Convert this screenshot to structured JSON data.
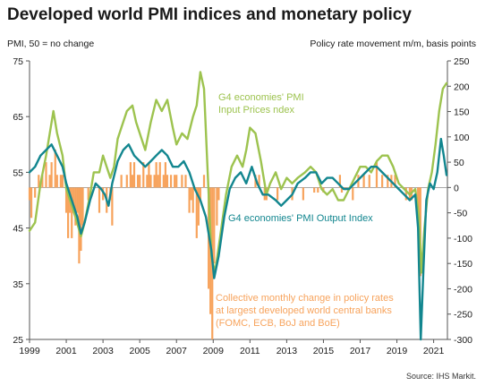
{
  "chart_data": {
    "type": "line",
    "title": "Developed world PMI indices and monetary policy",
    "left_axis_label": "PMI, 50 = no change",
    "right_axis_label": "Policy rate movement m/m, basis points",
    "source": "Source: IHS Markit.",
    "x_ticks": [
      "1999",
      "2001",
      "2003",
      "2005",
      "2007",
      "2009",
      "2011",
      "2013",
      "2015",
      "2017",
      "2019",
      "2021"
    ],
    "x_range": [
      1999.0,
      2021.75
    ],
    "y_left_ticks": [
      25,
      35,
      45,
      55,
      65,
      75
    ],
    "y_left_range": [
      25,
      75
    ],
    "y_right_ticks": [
      -300,
      -250,
      -200,
      -150,
      -100,
      -50,
      0,
      50,
      100,
      150,
      200,
      250
    ],
    "y_right_range": [
      -300,
      250
    ],
    "grid": false,
    "colors": {
      "input_prices": "#9dc34f",
      "output": "#12868f",
      "policy": "#f7a35c"
    },
    "annotations": {
      "input_prices_label": [
        "G4 economies' PMI",
        "Input  Prices ndex"
      ],
      "output_label": [
        "G4 economies' PMI Output  Index"
      ],
      "policy_label": [
        "Collective monthly change in policy rates",
        "at largest developed world central banks",
        "(FOMC, ECB, BoJ and BoE)"
      ]
    },
    "series": [
      {
        "name": "G4 economies' PMI Input  Prices ndex",
        "axis": "left",
        "points": [
          [
            1999.0,
            44.5
          ],
          [
            1999.3,
            46
          ],
          [
            1999.6,
            53
          ],
          [
            1999.9,
            58
          ],
          [
            2000.1,
            62
          ],
          [
            2000.3,
            66
          ],
          [
            2000.5,
            62
          ],
          [
            2000.8,
            58
          ],
          [
            2001.0,
            52
          ],
          [
            2001.2,
            50
          ],
          [
            2001.5,
            47
          ],
          [
            2001.8,
            43.5
          ],
          [
            2002.0,
            46
          ],
          [
            2002.3,
            51
          ],
          [
            2002.5,
            55
          ],
          [
            2002.8,
            55
          ],
          [
            2003.0,
            58
          ],
          [
            2003.2,
            56
          ],
          [
            2003.4,
            54
          ],
          [
            2003.6,
            56
          ],
          [
            2003.8,
            61
          ],
          [
            2004.0,
            63
          ],
          [
            2004.3,
            66
          ],
          [
            2004.6,
            67
          ],
          [
            2004.8,
            64
          ],
          [
            2005.0,
            62
          ],
          [
            2005.3,
            59
          ],
          [
            2005.6,
            64
          ],
          [
            2005.9,
            68
          ],
          [
            2006.2,
            66
          ],
          [
            2006.5,
            68
          ],
          [
            2006.8,
            63
          ],
          [
            2007.0,
            60
          ],
          [
            2007.3,
            62
          ],
          [
            2007.6,
            61
          ],
          [
            2007.9,
            65
          ],
          [
            2008.1,
            67
          ],
          [
            2008.3,
            73
          ],
          [
            2008.5,
            70
          ],
          [
            2008.7,
            55
          ],
          [
            2008.9,
            40
          ],
          [
            2009.1,
            37
          ],
          [
            2009.4,
            44
          ],
          [
            2009.7,
            51
          ],
          [
            2010.0,
            56
          ],
          [
            2010.3,
            58
          ],
          [
            2010.6,
            56
          ],
          [
            2010.8,
            59
          ],
          [
            2011.0,
            63
          ],
          [
            2011.3,
            62
          ],
          [
            2011.6,
            57
          ],
          [
            2011.9,
            51
          ],
          [
            2012.1,
            53
          ],
          [
            2012.4,
            55
          ],
          [
            2012.7,
            52
          ],
          [
            2013.0,
            54
          ],
          [
            2013.3,
            53
          ],
          [
            2013.6,
            54
          ],
          [
            2014.0,
            55
          ],
          [
            2014.3,
            56
          ],
          [
            2014.6,
            55
          ],
          [
            2014.9,
            52
          ],
          [
            2015.2,
            51
          ],
          [
            2015.5,
            52
          ],
          [
            2015.8,
            50
          ],
          [
            2016.1,
            50
          ],
          [
            2016.4,
            52
          ],
          [
            2016.7,
            54
          ],
          [
            2017.0,
            56
          ],
          [
            2017.3,
            56
          ],
          [
            2017.6,
            55
          ],
          [
            2017.9,
            57
          ],
          [
            2018.2,
            58
          ],
          [
            2018.5,
            58
          ],
          [
            2018.8,
            56
          ],
          [
            2019.1,
            53
          ],
          [
            2019.4,
            52
          ],
          [
            2019.7,
            51
          ],
          [
            2020.0,
            52
          ],
          [
            2020.2,
            47
          ],
          [
            2020.33,
            37
          ],
          [
            2020.5,
            45
          ],
          [
            2020.7,
            52
          ],
          [
            2020.9,
            55
          ],
          [
            2021.1,
            60
          ],
          [
            2021.3,
            66
          ],
          [
            2021.5,
            70
          ],
          [
            2021.7,
            71
          ]
        ]
      },
      {
        "name": "G4 economies' PMI Output  Index",
        "axis": "left",
        "points": [
          [
            1999.0,
            55
          ],
          [
            1999.3,
            56
          ],
          [
            1999.6,
            58
          ],
          [
            1999.9,
            59
          ],
          [
            2000.2,
            60
          ],
          [
            2000.5,
            58
          ],
          [
            2000.8,
            56
          ],
          [
            2001.0,
            53
          ],
          [
            2001.3,
            50
          ],
          [
            2001.6,
            47
          ],
          [
            2001.8,
            44
          ],
          [
            2002.0,
            46
          ],
          [
            2002.3,
            50
          ],
          [
            2002.6,
            53
          ],
          [
            2002.9,
            52
          ],
          [
            2003.1,
            51
          ],
          [
            2003.3,
            49
          ],
          [
            2003.5,
            53
          ],
          [
            2003.8,
            57
          ],
          [
            2004.1,
            59
          ],
          [
            2004.4,
            60
          ],
          [
            2004.7,
            58
          ],
          [
            2005.0,
            57
          ],
          [
            2005.3,
            56
          ],
          [
            2005.6,
            57
          ],
          [
            2005.9,
            58
          ],
          [
            2006.2,
            59
          ],
          [
            2006.5,
            58
          ],
          [
            2006.8,
            56
          ],
          [
            2007.1,
            56
          ],
          [
            2007.4,
            57
          ],
          [
            2007.7,
            55
          ],
          [
            2008.0,
            52
          ],
          [
            2008.3,
            50
          ],
          [
            2008.6,
            47
          ],
          [
            2008.9,
            41
          ],
          [
            2009.05,
            36
          ],
          [
            2009.3,
            40
          ],
          [
            2009.6,
            47
          ],
          [
            2009.9,
            52
          ],
          [
            2010.2,
            54
          ],
          [
            2010.5,
            55
          ],
          [
            2010.8,
            53
          ],
          [
            2011.1,
            56
          ],
          [
            2011.4,
            53
          ],
          [
            2011.7,
            51
          ],
          [
            2012.0,
            51
          ],
          [
            2012.4,
            50
          ],
          [
            2012.7,
            49
          ],
          [
            2013.0,
            50
          ],
          [
            2013.3,
            51
          ],
          [
            2013.6,
            53
          ],
          [
            2014.0,
            54
          ],
          [
            2014.3,
            55
          ],
          [
            2014.6,
            55
          ],
          [
            2014.9,
            53
          ],
          [
            2015.2,
            54
          ],
          [
            2015.5,
            54
          ],
          [
            2015.8,
            53
          ],
          [
            2016.1,
            52
          ],
          [
            2016.4,
            52
          ],
          [
            2016.7,
            53
          ],
          [
            2017.0,
            54
          ],
          [
            2017.3,
            55
          ],
          [
            2017.6,
            56
          ],
          [
            2017.9,
            56
          ],
          [
            2018.2,
            55
          ],
          [
            2018.5,
            54
          ],
          [
            2018.8,
            53
          ],
          [
            2019.1,
            52
          ],
          [
            2019.4,
            51
          ],
          [
            2019.7,
            50
          ],
          [
            2020.0,
            51
          ],
          [
            2020.15,
            45
          ],
          [
            2020.3,
            25
          ],
          [
            2020.45,
            38
          ],
          [
            2020.6,
            50
          ],
          [
            2020.8,
            53
          ],
          [
            2021.0,
            52
          ],
          [
            2021.2,
            55
          ],
          [
            2021.4,
            61
          ],
          [
            2021.55,
            58
          ],
          [
            2021.7,
            54.5
          ]
        ]
      },
      {
        "name": "Collective monthly change in policy rates at largest developed world central banks (FOMC, ECB, BoJ and BoE)",
        "axis": "right",
        "type": "bar",
        "points": [
          [
            1999.0,
            -25
          ],
          [
            1999.1,
            -60
          ],
          [
            1999.3,
            -20
          ],
          [
            1999.5,
            25
          ],
          [
            1999.7,
            25
          ],
          [
            1999.9,
            50
          ],
          [
            2000.1,
            25
          ],
          [
            2000.2,
            50
          ],
          [
            2000.4,
            75
          ],
          [
            2000.5,
            25
          ],
          [
            2000.7,
            25
          ],
          [
            2000.8,
            25
          ],
          [
            2001.0,
            -50
          ],
          [
            2001.1,
            -100
          ],
          [
            2001.2,
            -50
          ],
          [
            2001.3,
            -100
          ],
          [
            2001.4,
            -50
          ],
          [
            2001.5,
            -75
          ],
          [
            2001.6,
            -50
          ],
          [
            2001.7,
            -150
          ],
          [
            2001.8,
            -125
          ],
          [
            2001.9,
            -75
          ],
          [
            2002.2,
            -25
          ],
          [
            2002.8,
            -50
          ],
          [
            2003.0,
            -25
          ],
          [
            2003.2,
            -50
          ],
          [
            2003.4,
            -25
          ],
          [
            2003.5,
            -75
          ],
          [
            2004.0,
            25
          ],
          [
            2004.3,
            25
          ],
          [
            2004.5,
            50
          ],
          [
            2004.6,
            25
          ],
          [
            2004.7,
            50
          ],
          [
            2004.9,
            25
          ],
          [
            2005.0,
            25
          ],
          [
            2005.2,
            50
          ],
          [
            2005.4,
            25
          ],
          [
            2005.5,
            50
          ],
          [
            2005.6,
            25
          ],
          [
            2005.8,
            25
          ],
          [
            2005.9,
            50
          ],
          [
            2006.0,
            25
          ],
          [
            2006.1,
            50
          ],
          [
            2006.3,
            25
          ],
          [
            2006.4,
            50
          ],
          [
            2006.5,
            25
          ],
          [
            2006.7,
            25
          ],
          [
            2006.9,
            25
          ],
          [
            2007.0,
            25
          ],
          [
            2007.3,
            25
          ],
          [
            2007.5,
            25
          ],
          [
            2007.7,
            -50
          ],
          [
            2007.8,
            -25
          ],
          [
            2007.9,
            -50
          ],
          [
            2008.1,
            -100
          ],
          [
            2008.2,
            -75
          ],
          [
            2008.3,
            -25
          ],
          [
            2008.5,
            25
          ],
          [
            2008.75,
            -200
          ],
          [
            2008.85,
            -250
          ],
          [
            2008.95,
            -300
          ],
          [
            2009.05,
            -150
          ],
          [
            2009.2,
            -75
          ],
          [
            2009.3,
            -25
          ],
          [
            2011.3,
            25
          ],
          [
            2011.5,
            25
          ],
          [
            2011.8,
            -25
          ],
          [
            2011.9,
            -25
          ],
          [
            2012.5,
            -25
          ],
          [
            2013.3,
            -25
          ],
          [
            2013.9,
            -25
          ],
          [
            2014.5,
            -10
          ],
          [
            2014.7,
            -10
          ],
          [
            2015.0,
            -10
          ],
          [
            2015.9,
            25
          ],
          [
            2016.0,
            -10
          ],
          [
            2016.2,
            -5
          ],
          [
            2016.6,
            -25
          ],
          [
            2016.9,
            25
          ],
          [
            2017.2,
            25
          ],
          [
            2017.5,
            25
          ],
          [
            2017.9,
            50
          ],
          [
            2018.2,
            25
          ],
          [
            2018.5,
            25
          ],
          [
            2018.7,
            25
          ],
          [
            2018.9,
            25
          ],
          [
            2019.5,
            -25
          ],
          [
            2019.7,
            -25
          ],
          [
            2019.8,
            -25
          ],
          [
            2020.15,
            -50
          ],
          [
            2020.22,
            -150
          ],
          [
            2020.28,
            -175
          ]
        ]
      }
    ]
  }
}
